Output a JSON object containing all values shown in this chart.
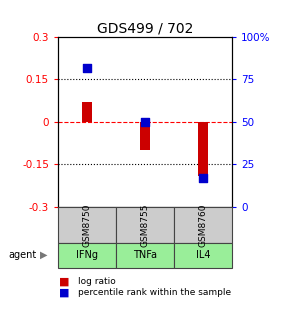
{
  "title": "GDS499 / 702",
  "categories": [
    "IFNg",
    "TNFa",
    "IL4"
  ],
  "gsm_labels": [
    "GSM8750",
    "GSM8755",
    "GSM8760"
  ],
  "log_ratios": [
    0.07,
    -0.1,
    -0.19
  ],
  "percentile_ranks": [
    82,
    50,
    17
  ],
  "ylim_left": [
    -0.3,
    0.3
  ],
  "ylim_right": [
    0,
    100
  ],
  "yticks_left": [
    -0.3,
    -0.15,
    0,
    0.15,
    0.3
  ],
  "yticks_right": [
    0,
    25,
    50,
    75,
    100
  ],
  "ytick_labels_right": [
    "0",
    "25",
    "50",
    "75",
    "100%"
  ],
  "bar_color": "#cc0000",
  "dot_color": "#0000cc",
  "bar_width": 0.18,
  "dot_size": 28,
  "cell_color_gsm": "#cccccc",
  "cell_color_agent": "#99ee99",
  "cell_border": "#444444",
  "agent_label": "agent",
  "legend_bar_label": "log ratio",
  "legend_dot_label": "percentile rank within the sample",
  "title_fontsize": 10,
  "tick_fontsize": 7.5,
  "label_fontsize": 7
}
